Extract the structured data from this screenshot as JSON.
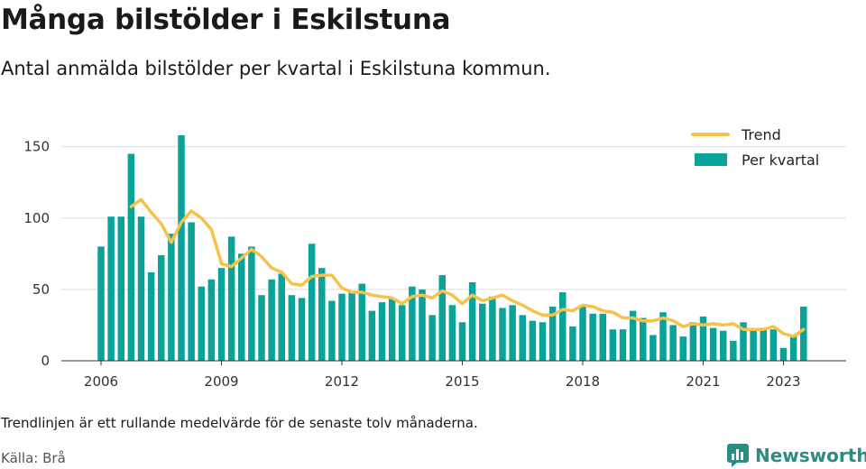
{
  "title": "Många bilstölder i Eskilstuna",
  "subtitle": "Antal anmälda bilstölder per kvartal i Eskilstuna kommun.",
  "note": "Trendlinjen är ett rullande medelvärde för de senaste tolv månaderna.",
  "source": "Källa: Brå",
  "brand": "Newsworthy",
  "colors": {
    "bars": "#0aa39a",
    "trend": "#f7c24a",
    "grid": "#dddddd",
    "brand": "#2a8c82"
  },
  "chart_data": {
    "type": "bar",
    "title": "Många bilstölder i Eskilstuna",
    "xlabel": "",
    "ylabel": "",
    "ylim": [
      0,
      170
    ],
    "yticks": [
      0,
      50,
      100,
      150
    ],
    "xticks": [
      "2006",
      "2009",
      "2012",
      "2015",
      "2018",
      "2021",
      "2023"
    ],
    "grid": true,
    "legend_position": "top-right",
    "series": [
      {
        "name": "Per kvartal",
        "type": "bar",
        "x": [
          "2006 Q1",
          "2006 Q2",
          "2006 Q3",
          "2006 Q4",
          "2007 Q1",
          "2007 Q2",
          "2007 Q3",
          "2007 Q4",
          "2008 Q1",
          "2008 Q2",
          "2008 Q3",
          "2008 Q4",
          "2009 Q1",
          "2009 Q2",
          "2009 Q3",
          "2009 Q4",
          "2010 Q1",
          "2010 Q2",
          "2010 Q3",
          "2010 Q4",
          "2011 Q1",
          "2011 Q2",
          "2011 Q3",
          "2011 Q4",
          "2012 Q1",
          "2012 Q2",
          "2012 Q3",
          "2012 Q4",
          "2013 Q1",
          "2013 Q2",
          "2013 Q3",
          "2013 Q4",
          "2014 Q1",
          "2014 Q2",
          "2014 Q3",
          "2014 Q4",
          "2015 Q1",
          "2015 Q2",
          "2015 Q3",
          "2015 Q4",
          "2016 Q1",
          "2016 Q2",
          "2016 Q3",
          "2016 Q4",
          "2017 Q1",
          "2017 Q2",
          "2017 Q3",
          "2017 Q4",
          "2018 Q1",
          "2018 Q2",
          "2018 Q3",
          "2018 Q4",
          "2019 Q1",
          "2019 Q2",
          "2019 Q3",
          "2019 Q4",
          "2020 Q1",
          "2020 Q2",
          "2020 Q3",
          "2020 Q4",
          "2021 Q1",
          "2021 Q2",
          "2021 Q3",
          "2021 Q4",
          "2022 Q1",
          "2022 Q2",
          "2022 Q3",
          "2022 Q4",
          "2023 Q1",
          "2023 Q2",
          "2023 Q3"
        ],
        "values": [
          80,
          101,
          101,
          145,
          101,
          62,
          74,
          89,
          158,
          97,
          52,
          57,
          65,
          87,
          75,
          80,
          46,
          57,
          61,
          46,
          44,
          82,
          65,
          42,
          47,
          48,
          54,
          35,
          41,
          44,
          39,
          52,
          50,
          32,
          60,
          39,
          27,
          55,
          40,
          45,
          37,
          39,
          32,
          28,
          27,
          38,
          48,
          24,
          38,
          33,
          33,
          22,
          22,
          35,
          30,
          18,
          34,
          25,
          17,
          27,
          31,
          23,
          21,
          14,
          27,
          23,
          22,
          22,
          9,
          18,
          38
        ]
      },
      {
        "name": "Trend",
        "type": "line",
        "x": [
          "2006 Q4",
          "2007 Q1",
          "2007 Q2",
          "2007 Q3",
          "2007 Q4",
          "2008 Q1",
          "2008 Q2",
          "2008 Q3",
          "2008 Q4",
          "2009 Q1",
          "2009 Q2",
          "2009 Q3",
          "2009 Q4",
          "2010 Q1",
          "2010 Q2",
          "2010 Q3",
          "2010 Q4",
          "2011 Q1",
          "2011 Q2",
          "2011 Q3",
          "2011 Q4",
          "2012 Q1",
          "2012 Q2",
          "2012 Q3",
          "2012 Q4",
          "2013 Q1",
          "2013 Q2",
          "2013 Q3",
          "2013 Q4",
          "2014 Q1",
          "2014 Q2",
          "2014 Q3",
          "2014 Q4",
          "2015 Q1",
          "2015 Q2",
          "2015 Q3",
          "2015 Q4",
          "2016 Q1",
          "2016 Q2",
          "2016 Q3",
          "2016 Q4",
          "2017 Q1",
          "2017 Q2",
          "2017 Q3",
          "2017 Q4",
          "2018 Q1",
          "2018 Q2",
          "2018 Q3",
          "2018 Q4",
          "2019 Q1",
          "2019 Q2",
          "2019 Q3",
          "2019 Q4",
          "2020 Q1",
          "2020 Q2",
          "2020 Q3",
          "2020 Q4",
          "2021 Q1",
          "2021 Q2",
          "2021 Q3",
          "2021 Q4",
          "2022 Q1",
          "2022 Q2",
          "2022 Q3",
          "2022 Q4",
          "2023 Q1",
          "2023 Q2",
          "2023 Q3"
        ],
        "values": [
          108,
          113,
          104,
          96,
          83,
          97,
          105,
          100,
          92,
          68,
          66,
          72,
          78,
          73,
          65,
          62,
          54,
          53,
          59,
          60,
          60,
          51,
          48,
          48,
          46,
          45,
          44,
          40,
          45,
          46,
          44,
          49,
          46,
          40,
          46,
          42,
          44,
          46,
          42,
          39,
          35,
          32,
          32,
          36,
          35,
          39,
          38,
          35,
          34,
          30,
          30,
          28,
          28,
          30,
          28,
          24,
          26,
          25,
          26,
          25,
          26,
          22,
          22,
          22,
          24,
          19,
          17,
          22
        ]
      }
    ]
  }
}
